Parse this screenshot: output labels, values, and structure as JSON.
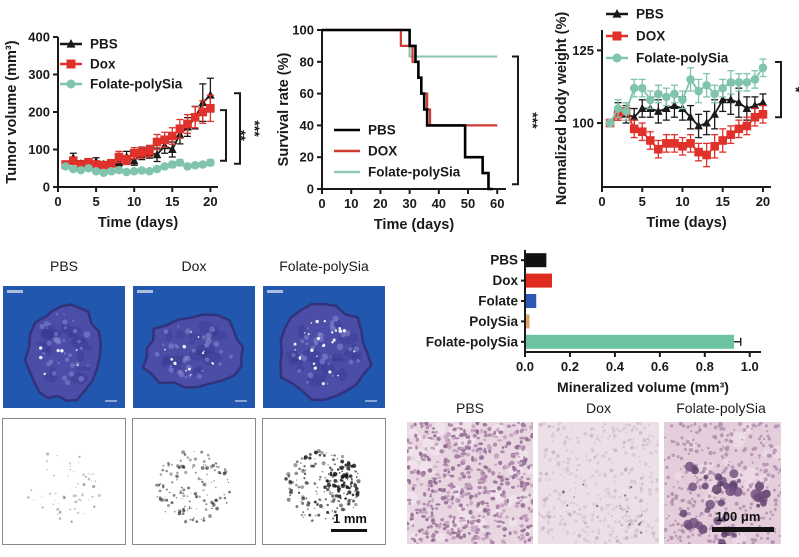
{
  "chart_data": [
    {
      "type": "line",
      "title": "",
      "xlabel": "Time (days)",
      "ylabel": "Tumor volume (mm³)",
      "xlim": [
        0,
        21
      ],
      "ylim": [
        0,
        400
      ],
      "xticks": [
        0,
        5,
        10,
        15,
        20
      ],
      "yticks": [
        0,
        100,
        200,
        300,
        400
      ],
      "x": [
        1,
        2,
        3,
        4,
        5,
        6,
        7,
        8,
        9,
        10,
        11,
        12,
        13,
        14,
        15,
        16,
        17,
        18,
        19,
        20
      ],
      "series": [
        {
          "name": "PBS",
          "color": "#1a1a1a",
          "marker": "triangle",
          "values": [
            60,
            78,
            62,
            65,
            68,
            60,
            63,
            66,
            80,
            70,
            88,
            92,
            86,
            110,
            100,
            140,
            160,
            185,
            225,
            245
          ],
          "errors": [
            5,
            12,
            8,
            8,
            10,
            8,
            8,
            10,
            15,
            12,
            15,
            15,
            18,
            20,
            20,
            25,
            25,
            30,
            50,
            45
          ]
        },
        {
          "name": "Dox",
          "color": "#e0312a",
          "marker": "square",
          "values": [
            60,
            70,
            60,
            66,
            60,
            58,
            63,
            80,
            72,
            90,
            92,
            96,
            120,
            126,
            136,
            155,
            168,
            186,
            200,
            210
          ],
          "errors": [
            5,
            8,
            8,
            8,
            8,
            8,
            10,
            15,
            12,
            15,
            15,
            15,
            20,
            20,
            22,
            25,
            25,
            28,
            30,
            35
          ]
        },
        {
          "name": "Folate-polySia",
          "color": "#7fc4ab",
          "marker": "circle",
          "values": [
            55,
            48,
            45,
            50,
            42,
            38,
            42,
            45,
            40,
            42,
            44,
            42,
            48,
            55,
            60,
            65,
            55,
            58,
            60,
            65
          ],
          "errors": [
            5,
            5,
            5,
            6,
            5,
            5,
            5,
            6,
            5,
            5,
            5,
            5,
            6,
            6,
            8,
            8,
            6,
            6,
            6,
            8
          ]
        }
      ],
      "legend_position": "top-left",
      "significance": [
        {
          "label": "**",
          "between": [
            "Dox",
            "Folate-polySia"
          ]
        },
        {
          "label": "***",
          "between": [
            "PBS",
            "Folate-polySia"
          ]
        }
      ]
    },
    {
      "type": "step",
      "title": "",
      "xlabel": "Time (days)",
      "ylabel": "Survival rate (%)",
      "xlim": [
        0,
        63
      ],
      "ylim": [
        0,
        100
      ],
      "xticks": [
        0,
        10,
        20,
        30,
        40,
        50,
        60
      ],
      "yticks": [
        0,
        20,
        40,
        60,
        80,
        100
      ],
      "series": [
        {
          "name": "Folate-polySia",
          "color": "#8fc7b1",
          "points": [
            [
              0,
              100
            ],
            [
              30,
              100
            ],
            [
              30,
              83.3
            ],
            [
              60,
              83.3
            ]
          ]
        },
        {
          "name": "DOX",
          "color": "#cf3b31",
          "points": [
            [
              0,
              100
            ],
            [
              27,
              100
            ],
            [
              27,
              90
            ],
            [
              31,
              90
            ],
            [
              31,
              80
            ],
            [
              33,
              80
            ],
            [
              33,
              70
            ],
            [
              34,
              70
            ],
            [
              34,
              60
            ],
            [
              36,
              60
            ],
            [
              36,
              50
            ],
            [
              37,
              50
            ],
            [
              37,
              40
            ],
            [
              60,
              40
            ]
          ]
        },
        {
          "name": "PBS",
          "color": "#000000",
          "points": [
            [
              0,
              100
            ],
            [
              30,
              100
            ],
            [
              30,
              90
            ],
            [
              32,
              90
            ],
            [
              32,
              80
            ],
            [
              33,
              80
            ],
            [
              33,
              70
            ],
            [
              34,
              70
            ],
            [
              34,
              60
            ],
            [
              35,
              60
            ],
            [
              35,
              50
            ],
            [
              36,
              50
            ],
            [
              36,
              40
            ],
            [
              49,
              40
            ],
            [
              49,
              20
            ],
            [
              55,
              20
            ],
            [
              55,
              10
            ],
            [
              57,
              10
            ],
            [
              57,
              0
            ],
            [
              58.5,
              0
            ]
          ]
        }
      ],
      "legend_position": "inside-left",
      "significance": [
        {
          "label": "***",
          "between": [
            "Folate-polySia",
            "PBS"
          ]
        }
      ]
    },
    {
      "type": "line",
      "title": "",
      "xlabel": "Time (days)",
      "ylabel": "Normalized body weight (%)",
      "xlim": [
        0,
        21
      ],
      "ylim": [
        78,
        132
      ],
      "xticks": [
        0,
        5,
        10,
        15,
        20
      ],
      "yticks": [
        100,
        125
      ],
      "x": [
        1,
        2,
        3,
        4,
        5,
        6,
        7,
        8,
        9,
        10,
        11,
        12,
        13,
        14,
        15,
        16,
        17,
        18,
        19,
        20
      ],
      "series": [
        {
          "name": "PBS",
          "color": "#1a1a1a",
          "marker": "triangle",
          "values": [
            100,
            104,
            103,
            102,
            105,
            105,
            104,
            105,
            106,
            105,
            102,
            99,
            100,
            103,
            108,
            108,
            107,
            105,
            106,
            107
          ],
          "errors": [
            1,
            3,
            3,
            3,
            3,
            3,
            4,
            4,
            4,
            4,
            4,
            4,
            4,
            5,
            4,
            5,
            5,
            4,
            3,
            3
          ]
        },
        {
          "name": "DOX",
          "color": "#e0312a",
          "marker": "square",
          "values": [
            100,
            103,
            104,
            98,
            97,
            94,
            91,
            93,
            93,
            92,
            93,
            90,
            89,
            92,
            94,
            96,
            98,
            99,
            102,
            103
          ],
          "errors": [
            1,
            2,
            3,
            3,
            3,
            3,
            3,
            3,
            3,
            3,
            3,
            3,
            4,
            4,
            4,
            3,
            3,
            3,
            3,
            3
          ]
        },
        {
          "name": "Folate-polySia",
          "color": "#7fc4ab",
          "marker": "circle",
          "values": [
            100,
            105,
            104,
            112,
            112,
            108,
            110,
            109,
            110,
            108,
            115,
            111,
            113,
            110,
            112,
            114,
            114,
            114,
            115,
            119
          ],
          "errors": [
            1,
            3,
            3,
            3,
            3,
            3,
            3,
            3,
            3,
            3,
            4,
            4,
            4,
            3,
            3,
            4,
            3,
            3,
            3,
            3
          ]
        }
      ],
      "legend_position": "top-left",
      "significance": [
        {
          "label": "*",
          "between": [
            "Folate-polySia",
            "PBS"
          ]
        }
      ]
    },
    {
      "type": "bar",
      "orientation": "horizontal",
      "title": "",
      "xlabel": "Mineralized volume (mm³)",
      "categories": [
        "PBS",
        "Dox",
        "Folate",
        "PolySia",
        "Folate-polySia"
      ],
      "values": [
        0.095,
        0.12,
        0.05,
        0.02,
        0.93
      ],
      "errors": [
        0,
        0,
        0,
        0,
        0.03
      ],
      "colors": [
        "#111111",
        "#e02b20",
        "#2b59b5",
        "#dfa267",
        "#6cc3a2"
      ],
      "xlim": [
        0,
        1.05
      ],
      "xticks": [
        "0.0",
        "0.2",
        "0.4",
        "0.6",
        "0.8",
        "1.0"
      ]
    }
  ],
  "microct": {
    "labels": [
      "PBS",
      "Dox",
      "Folate-polySia"
    ],
    "mask_scale_bar": "1 mm"
  },
  "histology": {
    "labels": [
      "PBS",
      "Dox",
      "Folate-polySia"
    ],
    "scale_bar": "100 μm"
  }
}
